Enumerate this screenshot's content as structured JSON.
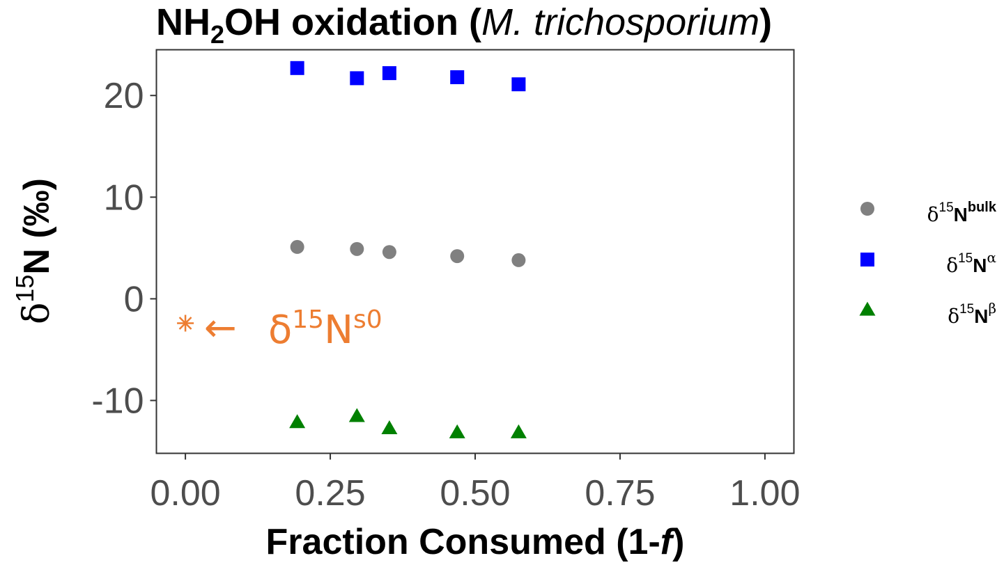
{
  "chart_data": {
    "type": "scatter",
    "title": {
      "prefix": "NH",
      "sub": "2",
      "middle": "OH oxidation (",
      "italic": "M. trichosporium",
      "suffix": ")"
    },
    "xlabel": {
      "prefix": "Fraction Consumed (1-",
      "italic": "f",
      "suffix": ")"
    },
    "ylabel": {
      "delta": "δ",
      "sup": "15",
      "main": "N (‰)"
    },
    "xlim": [
      -0.05,
      1.05
    ],
    "ylim": [
      -15.2,
      24.5
    ],
    "xticks": [
      0.0,
      0.25,
      0.5,
      0.75,
      1.0
    ],
    "xtick_labels": [
      "0.00",
      "0.25",
      "0.50",
      "0.75",
      "1.00"
    ],
    "yticks": [
      -10,
      0,
      10,
      20
    ],
    "ytick_labels": [
      "-10",
      "0",
      "10",
      "20"
    ],
    "grid": false,
    "legend_position": "right",
    "series": [
      {
        "key": "bulk",
        "legend": {
          "delta": "δ",
          "sup15": "15",
          "N": "N",
          "sup": "bulk"
        },
        "marker": "circle",
        "color": "#808080",
        "x": [
          0.193,
          0.296,
          0.352,
          0.469,
          0.575
        ],
        "y": [
          5.1,
          4.9,
          4.6,
          4.2,
          3.8
        ]
      },
      {
        "key": "alpha",
        "legend": {
          "delta": "δ",
          "sup15": "15",
          "N": "N",
          "sup": "α"
        },
        "marker": "square",
        "color": "#0000ff",
        "x": [
          0.193,
          0.296,
          0.352,
          0.469,
          0.575
        ],
        "y": [
          22.7,
          21.7,
          22.2,
          21.8,
          21.1
        ]
      },
      {
        "key": "beta",
        "legend": {
          "delta": "δ",
          "sup15": "15",
          "N": "N",
          "sup": "β"
        },
        "marker": "triangle",
        "color": "#008000",
        "x": [
          0.193,
          0.296,
          0.352,
          0.469,
          0.575
        ],
        "y": [
          -12.2,
          -11.6,
          -12.8,
          -13.2,
          -13.2
        ]
      }
    ],
    "annotation": {
      "point": {
        "x": 0.0,
        "y": -2.4,
        "marker": "asterisk"
      },
      "color": "#ed7d31",
      "arrow": "←",
      "delta": "δ",
      "sup15": "15",
      "N": "N",
      "sup": "s0"
    }
  }
}
